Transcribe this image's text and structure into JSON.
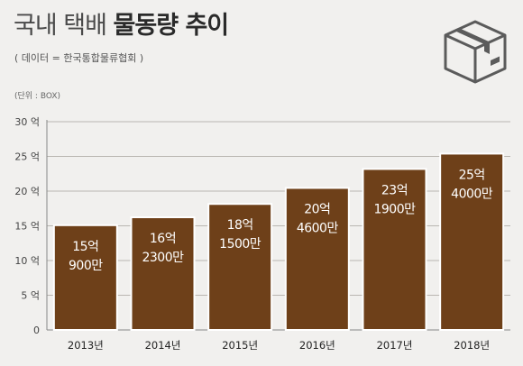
{
  "header": {
    "title_light": "국내 택배",
    "title_bold": "물동량 추이",
    "source": "( 데이터 = 한국통합물류협회 )",
    "unit": "(단위 : BOX)"
  },
  "icon": {
    "name": "package-box-icon",
    "color": "#5b5b5b"
  },
  "colors": {
    "bar": "#6e4019",
    "bar_stroke": "#ffffff",
    "axis": "#888888",
    "grid": "#b9b6b1"
  },
  "chart_data": {
    "type": "bar",
    "categories": [
      "2013년",
      "2014년",
      "2015년",
      "2016년",
      "2017년",
      "2018년"
    ],
    "values": [
      1509000000,
      1623000000,
      1815000000,
      2046000000,
      2319000000,
      2540000000
    ],
    "data_labels": [
      [
        "15억",
        "900만"
      ],
      [
        "16억",
        "2300만"
      ],
      [
        "18억",
        "1500만"
      ],
      [
        "20억",
        "4600만"
      ],
      [
        "23억",
        "1900만"
      ],
      [
        "25억",
        "4000만"
      ]
    ],
    "yticks": [
      0,
      500000000,
      1000000000,
      1500000000,
      2000000000,
      2500000000,
      3000000000
    ],
    "ytick_labels": [
      "0",
      "5 억",
      "10 억",
      "15 억",
      "20 억",
      "25 억",
      "30 억"
    ],
    "ylim": [
      0,
      3000000000
    ],
    "grid": true
  }
}
